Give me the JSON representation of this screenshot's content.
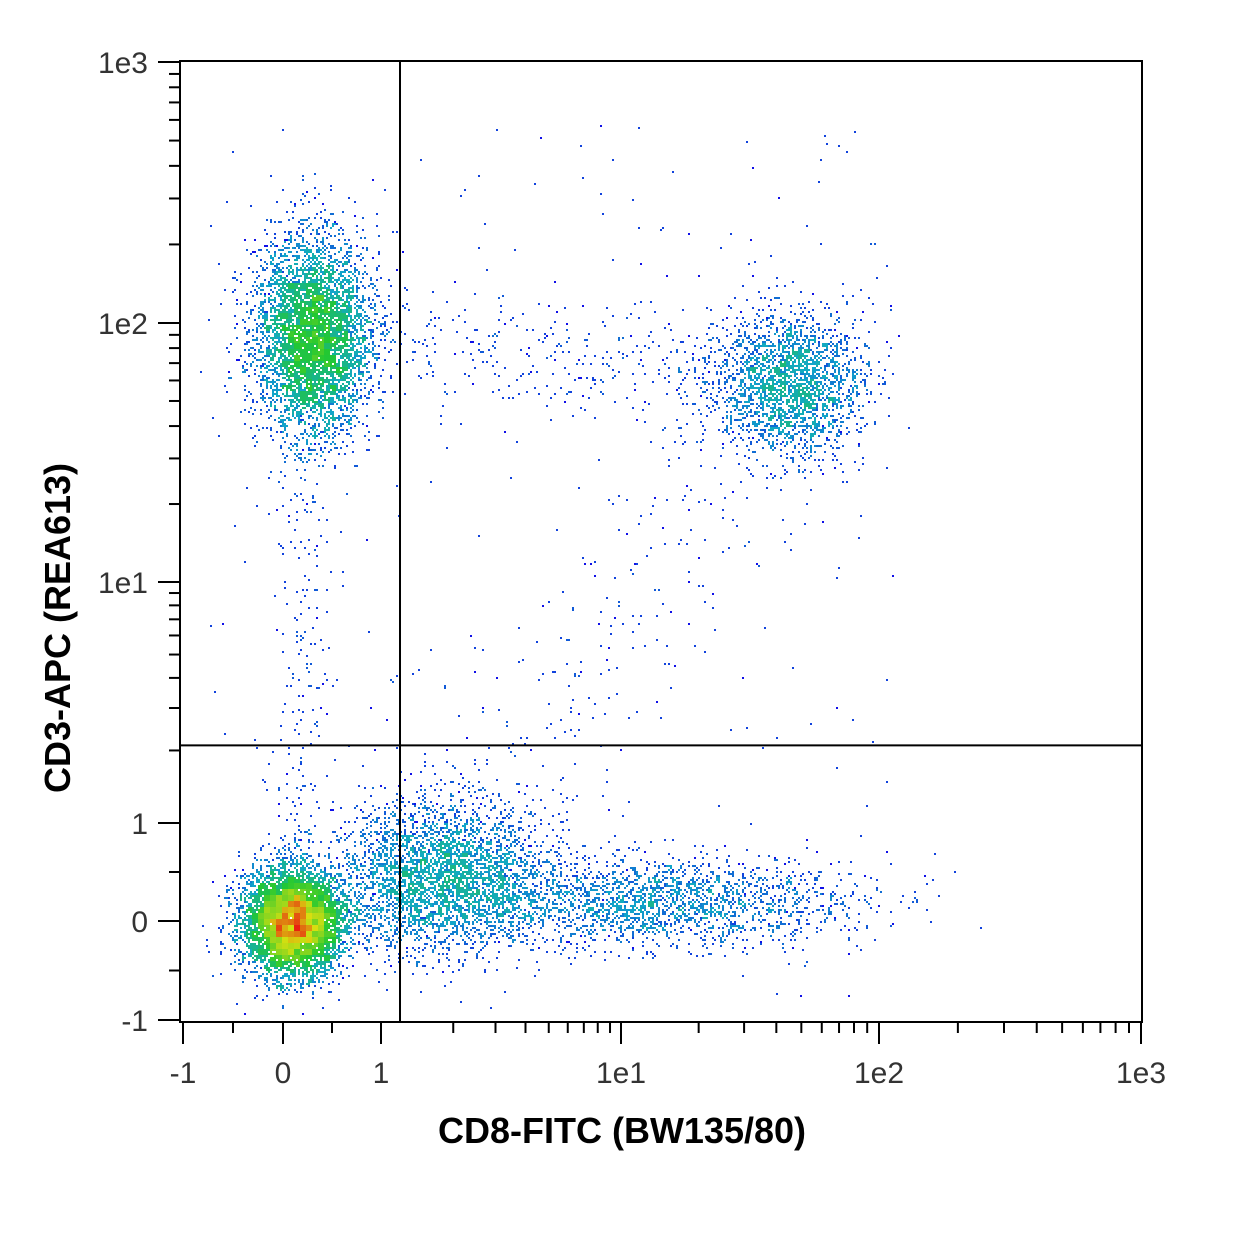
{
  "chart_data": {
    "type": "scatter",
    "subtype": "flow-cytometry-density-dot-plot",
    "xlabel": "CD8-FITC (BW135/80)",
    "ylabel": "CD3-APC (REA613)",
    "x_scale": "biexponential",
    "y_scale": "biexponential",
    "xlim": [
      -1,
      1000
    ],
    "ylim": [
      -1,
      1000
    ],
    "x_ticks": [
      {
        "value": -1,
        "label": "-1"
      },
      {
        "value": 0,
        "label": "0"
      },
      {
        "value": 1,
        "label": "1"
      },
      {
        "value": 10,
        "label": "1e1"
      },
      {
        "value": 100,
        "label": "1e2"
      },
      {
        "value": 1000,
        "label": "1e3"
      }
    ],
    "y_ticks": [
      {
        "value": -1,
        "label": "-1"
      },
      {
        "value": 0,
        "label": "0"
      },
      {
        "value": 1,
        "label": "1"
      },
      {
        "value": 10,
        "label": "1e1"
      },
      {
        "value": 100,
        "label": "1e2"
      },
      {
        "value": 1000,
        "label": "1e3"
      }
    ],
    "quadrant_gate": {
      "x": 1.2,
      "y": 2.1
    },
    "populations": [
      {
        "center_x": 0.1,
        "center_y": 0.0,
        "relative_density": "highest"
      },
      {
        "center_x": 0.3,
        "center_y": 90,
        "relative_density": "high"
      },
      {
        "center_x": 45,
        "center_y": 58,
        "relative_density": "medium"
      },
      {
        "center_x": 1.8,
        "center_y": 0.5,
        "relative_density": "medium"
      },
      {
        "center_x": 15,
        "center_y": 0.2,
        "relative_density": "low"
      }
    ],
    "grid": false,
    "legend": "none",
    "colors": {
      "density_low": "#1010e8",
      "density_mid_low": "#12a8c8",
      "density_mid": "#22c832",
      "density_high": "#d8e010",
      "density_peak": "#e82010",
      "gate_line": "#000000",
      "frame": "#000000"
    }
  }
}
